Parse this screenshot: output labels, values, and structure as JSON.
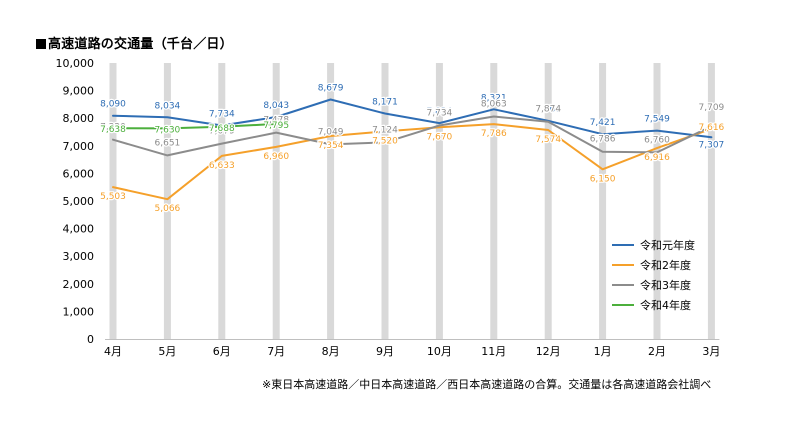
{
  "title": "高速道路の交通量（千台／日）",
  "note": "※東日本高速道路／中日本高速道路／西日本高速道路の合算。交通量は各高速道路会社調べ",
  "colors": {
    "background": "#ffffff",
    "column_band": "#d9d9d9",
    "axis": "#bfbfbf"
  },
  "chart_data": {
    "type": "line",
    "title": "高速道路の交通量（千台／日）",
    "xlabel": "",
    "ylabel": "",
    "categories": [
      "4月",
      "5月",
      "6月",
      "7月",
      "8月",
      "9月",
      "10月",
      "11月",
      "12月",
      "1月",
      "2月",
      "3月"
    ],
    "ylim": [
      0,
      10000
    ],
    "y_ticks": [
      "0",
      "1,000",
      "2,000",
      "3,000",
      "4,000",
      "5,000",
      "6,000",
      "7,000",
      "8,000",
      "9,000",
      "10,000"
    ],
    "grid": false,
    "legend_position": "right",
    "series": [
      {
        "name": "令和元年度",
        "color": "#2e6db4",
        "values": [
          8090,
          8034,
          7734,
          8043,
          8679,
          8171,
          7824,
          8321,
          7906,
          7421,
          7549,
          7307
        ],
        "labels": [
          "8,090",
          "8,034",
          "7,734",
          "8,043",
          "8,679",
          "8,171",
          "7,824",
          "8,321",
          "7,906",
          "7,421",
          "7,549",
          "7,307"
        ]
      },
      {
        "name": "令和2年度",
        "color": "#f5a02a",
        "values": [
          5503,
          5066,
          6633,
          6960,
          7354,
          7520,
          7670,
          7786,
          7574,
          6150,
          6916,
          7616
        ],
        "labels": [
          "5,503",
          "5,066",
          "6,633",
          "6,960",
          "7,354",
          "7,520",
          "7,670",
          "7,786",
          "7,574",
          "6,150",
          "6,916",
          "7,616"
        ]
      },
      {
        "name": "令和3年度",
        "color": "#8c8c8c",
        "values": [
          7220,
          6651,
          7079,
          7478,
          7049,
          7124,
          7734,
          8063,
          7874,
          6786,
          6760,
          7709
        ],
        "labels": [
          "7,220",
          "6,651",
          "7,079",
          "7,478",
          "7,049",
          "7,124",
          "7,734",
          "8,063",
          "7,874",
          "6,786",
          "6,760",
          "7,709"
        ]
      },
      {
        "name": "令和4年度",
        "color": "#4caf3c",
        "values": [
          7638,
          7630,
          7688,
          7795,
          null,
          null,
          null,
          null,
          null,
          null,
          null,
          null
        ],
        "labels": [
          "7,638",
          "7,630",
          "7,688",
          "7,795",
          "",
          "",
          "",
          "",
          "",
          "",
          "",
          ""
        ]
      }
    ]
  }
}
